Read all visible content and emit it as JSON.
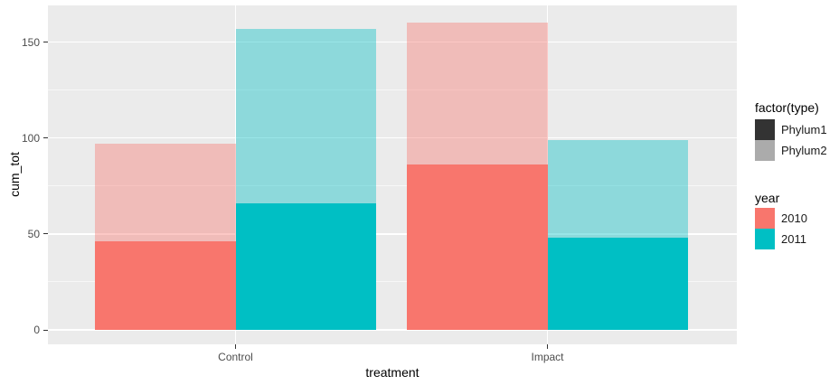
{
  "chart_data": {
    "type": "bar",
    "title": "",
    "xlabel": "treatment",
    "ylabel": "cum_tot",
    "categories": [
      "Control",
      "Impact"
    ],
    "y_ticks": [
      "0",
      "50",
      "100",
      "150"
    ],
    "y_tick_values": [
      0,
      50,
      100,
      150
    ],
    "y_minor_gridline_values": [
      25,
      75,
      125
    ],
    "ylim": [
      -7.5,
      169
    ],
    "grid": "major white horizontal and vertical lines, minor fainter white horizontal lines, on grey panel",
    "legend_position": "right",
    "structure": "bars dodged by year within each treatment; within each bar, Phylum1 solid at bottom and Phylum2 translucent stacked on top",
    "bars": [
      {
        "category": "Control",
        "year": "2010",
        "Phylum1": 46,
        "Phylum2": 51,
        "total": 97
      },
      {
        "category": "Control",
        "year": "2011",
        "Phylum1": 66,
        "Phylum2": 91,
        "total": 157
      },
      {
        "category": "Impact",
        "year": "2010",
        "Phylum1": 86,
        "Phylum2": 74,
        "total": 160
      },
      {
        "category": "Impact",
        "year": "2011",
        "Phylum1": 48,
        "Phylum2": 51,
        "total": 99
      }
    ],
    "series": [
      {
        "name": "2010 Phylum1",
        "values": [
          46,
          86
        ]
      },
      {
        "name": "2010 Phylum2",
        "values": [
          51,
          74
        ]
      },
      {
        "name": "2011 Phylum1",
        "values": [
          66,
          48
        ]
      },
      {
        "name": "2011 Phylum2",
        "values": [
          91,
          51
        ]
      }
    ]
  },
  "legends": [
    {
      "title": "factor(type)",
      "entries": [
        {
          "label": "Phylum1",
          "swatch": "#333333"
        },
        {
          "label": "Phylum2",
          "swatch": "#ABABAB"
        }
      ]
    },
    {
      "title": "year",
      "entries": [
        {
          "label": "2010",
          "swatch": "#F8766D"
        },
        {
          "label": "2011",
          "swatch": "#00BFC4"
        }
      ]
    }
  ],
  "colors": {
    "year_2010": "#F8766D",
    "year_2011": "#00BFC4",
    "phylum2_alpha": 0.4,
    "panel_background": "#EBEBEB",
    "gridline": "#FFFFFF",
    "axis_text": "#4D4D4D",
    "tick_mark": "#333333",
    "page_background": "#FFFFFF"
  }
}
